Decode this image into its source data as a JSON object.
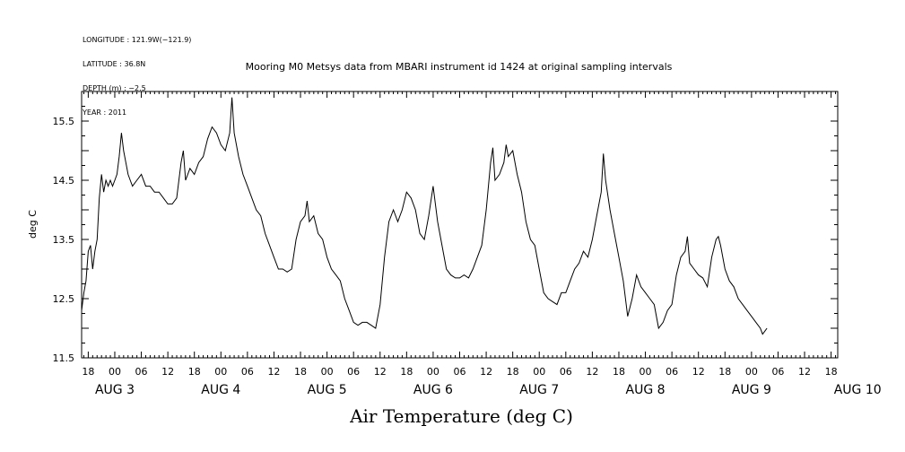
{
  "header": {
    "meta_lines": [
      "LONGITUDE : 121.9W(−121.9)",
      "LATITUDE : 36.8N",
      "DEPTH (m) : −2.5",
      "YEAR : 2011"
    ],
    "title": "Mooring M0 Metsys data from MBARI instrument id 1424 at original sampling intervals"
  },
  "chart_data": {
    "type": "line",
    "title": "Mooring M0 Metsys data from MBARI instrument id 1424 at original sampling intervals",
    "xlabel": "Air Temperature (deg C)",
    "ylabel": "deg C",
    "ylim": [
      11.5,
      16.0
    ],
    "yticks": [
      11.5,
      12.5,
      13.5,
      14.5,
      15.5
    ],
    "xlim_hours_from_aug3_00": [
      -7.5,
      163.5
    ],
    "hour_ticks": [
      {
        "t": -6,
        "label": "18"
      },
      {
        "t": 0,
        "label": "00"
      },
      {
        "t": 6,
        "label": "06"
      },
      {
        "t": 12,
        "label": "12"
      },
      {
        "t": 18,
        "label": "18"
      },
      {
        "t": 24,
        "label": "00"
      },
      {
        "t": 30,
        "label": "06"
      },
      {
        "t": 36,
        "label": "12"
      },
      {
        "t": 42,
        "label": "18"
      },
      {
        "t": 48,
        "label": "00"
      },
      {
        "t": 54,
        "label": "06"
      },
      {
        "t": 60,
        "label": "12"
      },
      {
        "t": 66,
        "label": "18"
      },
      {
        "t": 72,
        "label": "00"
      },
      {
        "t": 78,
        "label": "06"
      },
      {
        "t": 84,
        "label": "12"
      },
      {
        "t": 90,
        "label": "18"
      },
      {
        "t": 96,
        "label": "00"
      },
      {
        "t": 102,
        "label": "06"
      },
      {
        "t": 108,
        "label": "12"
      },
      {
        "t": 114,
        "label": "18"
      },
      {
        "t": 120,
        "label": "00"
      },
      {
        "t": 126,
        "label": "06"
      },
      {
        "t": 132,
        "label": "12"
      },
      {
        "t": 138,
        "label": "18"
      },
      {
        "t": 144,
        "label": "00"
      },
      {
        "t": 150,
        "label": "06"
      },
      {
        "t": 156,
        "label": "12"
      },
      {
        "t": 162,
        "label": "18"
      }
    ],
    "day_labels": [
      {
        "t": 0,
        "label": "AUG  3"
      },
      {
        "t": 24,
        "label": "AUG  4"
      },
      {
        "t": 48,
        "label": "AUG  5"
      },
      {
        "t": 72,
        "label": "AUG  6"
      },
      {
        "t": 96,
        "label": "AUG  7"
      },
      {
        "t": 120,
        "label": "AUG  8"
      },
      {
        "t": 144,
        "label": "AUG  9"
      },
      {
        "t": 168,
        "label": "AUG 10"
      }
    ],
    "series": [
      {
        "x_unit": "hours since AUG 3 00:00",
        "points": [
          [
            -7.5,
            12.3
          ],
          [
            -7.0,
            12.6
          ],
          [
            -6.5,
            12.8
          ],
          [
            -6.0,
            13.3
          ],
          [
            -5.5,
            13.4
          ],
          [
            -5.0,
            13.0
          ],
          [
            -4.5,
            13.3
          ],
          [
            -4.0,
            13.5
          ],
          [
            -3.5,
            14.2
          ],
          [
            -3.0,
            14.6
          ],
          [
            -2.5,
            14.3
          ],
          [
            -2.0,
            14.5
          ],
          [
            -1.5,
            14.4
          ],
          [
            -1.0,
            14.5
          ],
          [
            -0.5,
            14.4
          ],
          [
            0.0,
            14.5
          ],
          [
            0.5,
            14.6
          ],
          [
            1.0,
            14.9
          ],
          [
            1.5,
            15.3
          ],
          [
            2.0,
            15.0
          ],
          [
            2.5,
            14.8
          ],
          [
            3.0,
            14.6
          ],
          [
            3.5,
            14.5
          ],
          [
            4.0,
            14.4
          ],
          [
            5.0,
            14.5
          ],
          [
            6.0,
            14.6
          ],
          [
            7.0,
            14.4
          ],
          [
            8.0,
            14.4
          ],
          [
            9.0,
            14.3
          ],
          [
            10.0,
            14.3
          ],
          [
            11.0,
            14.2
          ],
          [
            12.0,
            14.1
          ],
          [
            13.0,
            14.1
          ],
          [
            14.0,
            14.2
          ],
          [
            15.0,
            14.8
          ],
          [
            15.5,
            15.0
          ],
          [
            16.0,
            14.5
          ],
          [
            17.0,
            14.7
          ],
          [
            18.0,
            14.6
          ],
          [
            19.0,
            14.8
          ],
          [
            20.0,
            14.9
          ],
          [
            21.0,
            15.2
          ],
          [
            22.0,
            15.4
          ],
          [
            23.0,
            15.3
          ],
          [
            24.0,
            15.1
          ],
          [
            25.0,
            15.0
          ],
          [
            26.0,
            15.3
          ],
          [
            26.5,
            15.9
          ],
          [
            27.0,
            15.3
          ],
          [
            28.0,
            14.9
          ],
          [
            29.0,
            14.6
          ],
          [
            30.0,
            14.4
          ],
          [
            31.0,
            14.2
          ],
          [
            32.0,
            14.0
          ],
          [
            33.0,
            13.9
          ],
          [
            34.0,
            13.6
          ],
          [
            35.0,
            13.4
          ],
          [
            36.0,
            13.2
          ],
          [
            37.0,
            13.0
          ],
          [
            38.0,
            13.0
          ],
          [
            39.0,
            12.95
          ],
          [
            40.0,
            13.0
          ],
          [
            41.0,
            13.5
          ],
          [
            42.0,
            13.8
          ],
          [
            43.0,
            13.9
          ],
          [
            43.5,
            14.15
          ],
          [
            44.0,
            13.8
          ],
          [
            45.0,
            13.9
          ],
          [
            46.0,
            13.6
          ],
          [
            47.0,
            13.5
          ],
          [
            48.0,
            13.2
          ],
          [
            49.0,
            13.0
          ],
          [
            50.0,
            12.9
          ],
          [
            51.0,
            12.8
          ],
          [
            52.0,
            12.5
          ],
          [
            53.0,
            12.3
          ],
          [
            54.0,
            12.1
          ],
          [
            55.0,
            12.05
          ],
          [
            56.0,
            12.1
          ],
          [
            57.0,
            12.1
          ],
          [
            58.0,
            12.05
          ],
          [
            59.0,
            12.0
          ],
          [
            60.0,
            12.4
          ],
          [
            61.0,
            13.2
          ],
          [
            62.0,
            13.8
          ],
          [
            63.0,
            14.0
          ],
          [
            64.0,
            13.8
          ],
          [
            65.0,
            14.0
          ],
          [
            66.0,
            14.3
          ],
          [
            67.0,
            14.2
          ],
          [
            68.0,
            14.0
          ],
          [
            69.0,
            13.6
          ],
          [
            70.0,
            13.5
          ],
          [
            71.0,
            13.9
          ],
          [
            72.0,
            14.4
          ],
          [
            73.0,
            13.8
          ],
          [
            74.0,
            13.4
          ],
          [
            75.0,
            13.0
          ],
          [
            76.0,
            12.9
          ],
          [
            77.0,
            12.85
          ],
          [
            78.0,
            12.85
          ],
          [
            79.0,
            12.9
          ],
          [
            80.0,
            12.85
          ],
          [
            81.0,
            13.0
          ],
          [
            82.0,
            13.2
          ],
          [
            83.0,
            13.4
          ],
          [
            84.0,
            14.0
          ],
          [
            85.0,
            14.8
          ],
          [
            85.5,
            15.05
          ],
          [
            86.0,
            14.5
          ],
          [
            87.0,
            14.6
          ],
          [
            88.0,
            14.8
          ],
          [
            88.5,
            15.1
          ],
          [
            89.0,
            14.9
          ],
          [
            90.0,
            15.0
          ],
          [
            91.0,
            14.6
          ],
          [
            92.0,
            14.3
          ],
          [
            93.0,
            13.8
          ],
          [
            94.0,
            13.5
          ],
          [
            95.0,
            13.4
          ],
          [
            96.0,
            13.0
          ],
          [
            97.0,
            12.6
          ],
          [
            98.0,
            12.5
          ],
          [
            99.0,
            12.45
          ],
          [
            100.0,
            12.4
          ],
          [
            101.0,
            12.6
          ],
          [
            102.0,
            12.6
          ],
          [
            103.0,
            12.8
          ],
          [
            104.0,
            13.0
          ],
          [
            105.0,
            13.1
          ],
          [
            106.0,
            13.3
          ],
          [
            107.0,
            13.2
          ],
          [
            108.0,
            13.5
          ],
          [
            109.0,
            13.9
          ],
          [
            110.0,
            14.3
          ],
          [
            110.5,
            14.95
          ],
          [
            111.0,
            14.5
          ],
          [
            112.0,
            14.0
          ],
          [
            113.0,
            13.6
          ],
          [
            114.0,
            13.2
          ],
          [
            115.0,
            12.8
          ],
          [
            116.0,
            12.2
          ],
          [
            117.0,
            12.5
          ],
          [
            118.0,
            12.9
          ],
          [
            119.0,
            12.7
          ],
          [
            120.0,
            12.6
          ],
          [
            121.0,
            12.5
          ],
          [
            122.0,
            12.4
          ],
          [
            123.0,
            12.0
          ],
          [
            124.0,
            12.1
          ],
          [
            125.0,
            12.3
          ],
          [
            126.0,
            12.4
          ],
          [
            127.0,
            12.9
          ],
          [
            128.0,
            13.2
          ],
          [
            129.0,
            13.3
          ],
          [
            129.5,
            13.55
          ],
          [
            130.0,
            13.1
          ],
          [
            131.0,
            13.0
          ],
          [
            132.0,
            12.9
          ],
          [
            133.0,
            12.85
          ],
          [
            134.0,
            12.7
          ],
          [
            135.0,
            13.2
          ],
          [
            136.0,
            13.5
          ],
          [
            136.5,
            13.55
          ],
          [
            137.0,
            13.4
          ],
          [
            138.0,
            13.0
          ],
          [
            139.0,
            12.8
          ],
          [
            140.0,
            12.7
          ],
          [
            141.0,
            12.5
          ],
          [
            142.0,
            12.4
          ],
          [
            143.0,
            12.3
          ],
          [
            144.0,
            12.2
          ],
          [
            145.0,
            12.1
          ],
          [
            146.0,
            12.0
          ],
          [
            146.5,
            11.9
          ],
          [
            147.0,
            11.95
          ],
          [
            147.5,
            12.0
          ]
        ]
      }
    ],
    "grid": false
  }
}
